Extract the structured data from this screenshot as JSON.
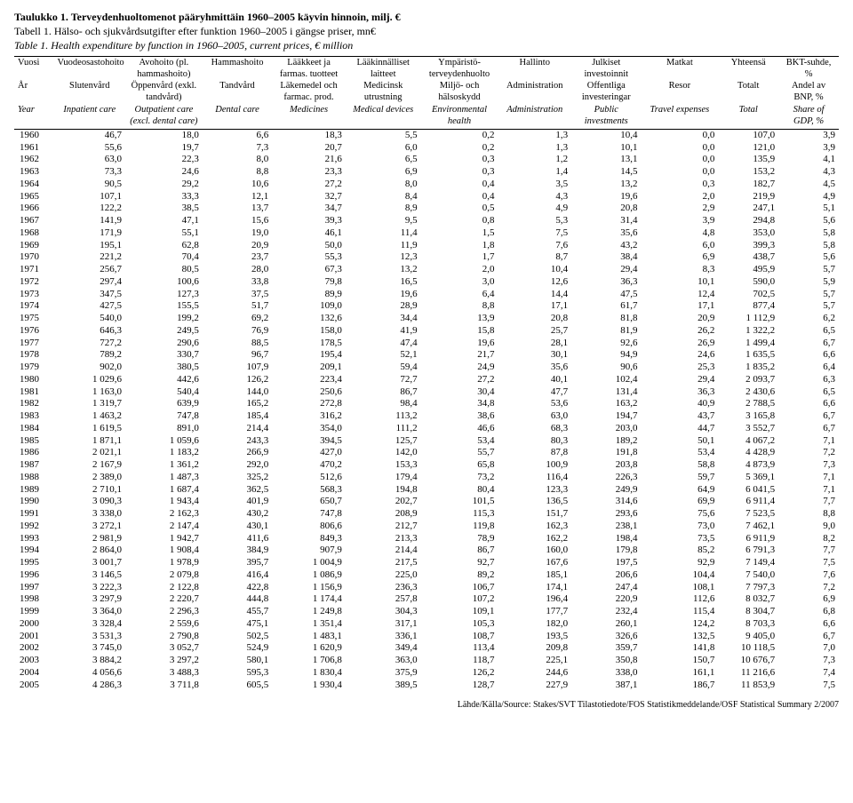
{
  "titles": {
    "fi": "Taulukko 1. Terveydenhuoltomenot pääryhmittäin 1960–2005 käyvin hinnoin, milj. €",
    "sv": "Tabell 1. Hälso- och sjukvårdsutgifter efter funktion 1960–2005 i gängse priser, mn€",
    "en": "Table 1. Health expenditure by function in 1960–2005, current prices, € million"
  },
  "headers": {
    "fi": [
      "Vuosi",
      "Vuodeosastohoito",
      "Avohoito (pl. hammashoito)",
      "Hammashoito",
      "Lääkkeet ja farmas. tuotteet",
      "Lääkinnälliset laitteet",
      "Ympäristö-terveydenhuolto",
      "Hallinto",
      "Julkiset investoinnit",
      "Matkat",
      "Yhteensä",
      "BKT-suhde, %"
    ],
    "sv": [
      "År",
      "Slutenvård",
      "Öppenvård (exkl. tandvård)",
      "Tandvård",
      "Läkemedel och farmac. prod.",
      "Medicinsk utrustning",
      "Miljö- och hälsoskydd",
      "Administration",
      "Offentliga investeringar",
      "Resor",
      "Totalt",
      "Andel av BNP, %"
    ],
    "en": [
      "Year",
      "Inpatient care",
      "Outpatient care (excl. dental care)",
      "Dental care",
      "Medicines",
      "Medical devices",
      "Environmental health",
      "Administration",
      "Public investments",
      "Travel expenses",
      "Total",
      "Share of GDP, %"
    ]
  },
  "rows": [
    [
      "1960",
      "46,7",
      "18,0",
      "6,6",
      "18,3",
      "5,5",
      "0,2",
      "1,3",
      "10,4",
      "0,0",
      "107,0",
      "3,9"
    ],
    [
      "1961",
      "55,6",
      "19,7",
      "7,3",
      "20,7",
      "6,0",
      "0,2",
      "1,3",
      "10,1",
      "0,0",
      "121,0",
      "3,9"
    ],
    [
      "1962",
      "63,0",
      "22,3",
      "8,0",
      "21,6",
      "6,5",
      "0,3",
      "1,2",
      "13,1",
      "0,0",
      "135,9",
      "4,1"
    ],
    [
      "1963",
      "73,3",
      "24,6",
      "8,8",
      "23,3",
      "6,9",
      "0,3",
      "1,4",
      "14,5",
      "0,0",
      "153,2",
      "4,3"
    ],
    [
      "1964",
      "90,5",
      "29,2",
      "10,6",
      "27,2",
      "8,0",
      "0,4",
      "3,5",
      "13,2",
      "0,3",
      "182,7",
      "4,5"
    ],
    [
      "1965",
      "107,1",
      "33,3",
      "12,1",
      "32,7",
      "8,4",
      "0,4",
      "4,3",
      "19,6",
      "2,0",
      "219,9",
      "4,9"
    ],
    [
      "1966",
      "122,2",
      "38,5",
      "13,7",
      "34,7",
      "8,9",
      "0,5",
      "4,9",
      "20,8",
      "2,9",
      "247,1",
      "5,1"
    ],
    [
      "1967",
      "141,9",
      "47,1",
      "15,6",
      "39,3",
      "9,5",
      "0,8",
      "5,3",
      "31,4",
      "3,9",
      "294,8",
      "5,6"
    ],
    [
      "1968",
      "171,9",
      "55,1",
      "19,0",
      "46,1",
      "11,4",
      "1,5",
      "7,5",
      "35,6",
      "4,8",
      "353,0",
      "5,8"
    ],
    [
      "1969",
      "195,1",
      "62,8",
      "20,9",
      "50,0",
      "11,9",
      "1,8",
      "7,6",
      "43,2",
      "6,0",
      "399,3",
      "5,8"
    ],
    [
      "1970",
      "221,2",
      "70,4",
      "23,7",
      "55,3",
      "12,3",
      "1,7",
      "8,7",
      "38,4",
      "6,9",
      "438,7",
      "5,6"
    ],
    [
      "1971",
      "256,7",
      "80,5",
      "28,0",
      "67,3",
      "13,2",
      "2,0",
      "10,4",
      "29,4",
      "8,3",
      "495,9",
      "5,7"
    ],
    [
      "1972",
      "297,4",
      "100,6",
      "33,8",
      "79,8",
      "16,5",
      "3,0",
      "12,6",
      "36,3",
      "10,1",
      "590,0",
      "5,9"
    ],
    [
      "1973",
      "347,5",
      "127,3",
      "37,5",
      "89,9",
      "19,6",
      "6,4",
      "14,4",
      "47,5",
      "12,4",
      "702,5",
      "5,7"
    ],
    [
      "1974",
      "427,5",
      "155,5",
      "51,7",
      "109,0",
      "28,9",
      "8,8",
      "17,1",
      "61,7",
      "17,1",
      "877,4",
      "5,7"
    ],
    [
      "1975",
      "540,0",
      "199,2",
      "69,2",
      "132,6",
      "34,4",
      "13,9",
      "20,8",
      "81,8",
      "20,9",
      "1 112,9",
      "6,2"
    ],
    [
      "1976",
      "646,3",
      "249,5",
      "76,9",
      "158,0",
      "41,9",
      "15,8",
      "25,7",
      "81,9",
      "26,2",
      "1 322,2",
      "6,5"
    ],
    [
      "1977",
      "727,2",
      "290,6",
      "88,5",
      "178,5",
      "47,4",
      "19,6",
      "28,1",
      "92,6",
      "26,9",
      "1 499,4",
      "6,7"
    ],
    [
      "1978",
      "789,2",
      "330,7",
      "96,7",
      "195,4",
      "52,1",
      "21,7",
      "30,1",
      "94,9",
      "24,6",
      "1 635,5",
      "6,6"
    ],
    [
      "1979",
      "902,0",
      "380,5",
      "107,9",
      "209,1",
      "59,4",
      "24,9",
      "35,6",
      "90,6",
      "25,3",
      "1 835,2",
      "6,4"
    ],
    [
      "1980",
      "1 029,6",
      "442,6",
      "126,2",
      "223,4",
      "72,7",
      "27,2",
      "40,1",
      "102,4",
      "29,4",
      "2 093,7",
      "6,3"
    ],
    [
      "1981",
      "1 163,0",
      "540,4",
      "144,0",
      "250,6",
      "86,7",
      "30,4",
      "47,7",
      "131,4",
      "36,3",
      "2 430,6",
      "6,5"
    ],
    [
      "1982",
      "1 319,7",
      "639,9",
      "165,2",
      "272,8",
      "98,4",
      "34,8",
      "53,6",
      "163,2",
      "40,9",
      "2 788,5",
      "6,6"
    ],
    [
      "1983",
      "1 463,2",
      "747,8",
      "185,4",
      "316,2",
      "113,2",
      "38,6",
      "63,0",
      "194,7",
      "43,7",
      "3 165,8",
      "6,7"
    ],
    [
      "1984",
      "1 619,5",
      "891,0",
      "214,4",
      "354,0",
      "111,2",
      "46,6",
      "68,3",
      "203,0",
      "44,7",
      "3 552,7",
      "6,7"
    ],
    [
      "1985",
      "1 871,1",
      "1 059,6",
      "243,3",
      "394,5",
      "125,7",
      "53,4",
      "80,3",
      "189,2",
      "50,1",
      "4 067,2",
      "7,1"
    ],
    [
      "1986",
      "2 021,1",
      "1 183,2",
      "266,9",
      "427,0",
      "142,0",
      "55,7",
      "87,8",
      "191,8",
      "53,4",
      "4 428,9",
      "7,2"
    ],
    [
      "1987",
      "2 167,9",
      "1 361,2",
      "292,0",
      "470,2",
      "153,3",
      "65,8",
      "100,9",
      "203,8",
      "58,8",
      "4 873,9",
      "7,3"
    ],
    [
      "1988",
      "2 389,0",
      "1 487,3",
      "325,2",
      "512,6",
      "179,4",
      "73,2",
      "116,4",
      "226,3",
      "59,7",
      "5 369,1",
      "7,1"
    ],
    [
      "1989",
      "2 710,1",
      "1 687,4",
      "362,5",
      "568,3",
      "194,8",
      "80,4",
      "123,3",
      "249,9",
      "64,9",
      "6 041,5",
      "7,1"
    ],
    [
      "1990",
      "3 090,3",
      "1 943,4",
      "401,9",
      "650,7",
      "202,7",
      "101,5",
      "136,5",
      "314,6",
      "69,9",
      "6 911,4",
      "7,7"
    ],
    [
      "1991",
      "3 338,0",
      "2 162,3",
      "430,2",
      "747,8",
      "208,9",
      "115,3",
      "151,7",
      "293,6",
      "75,6",
      "7 523,5",
      "8,8"
    ],
    [
      "1992",
      "3 272,1",
      "2 147,4",
      "430,1",
      "806,6",
      "212,7",
      "119,8",
      "162,3",
      "238,1",
      "73,0",
      "7 462,1",
      "9,0"
    ],
    [
      "1993",
      "2 981,9",
      "1 942,7",
      "411,6",
      "849,3",
      "213,3",
      "78,9",
      "162,2",
      "198,4",
      "73,5",
      "6 911,9",
      "8,2"
    ],
    [
      "1994",
      "2 864,0",
      "1 908,4",
      "384,9",
      "907,9",
      "214,4",
      "86,7",
      "160,0",
      "179,8",
      "85,2",
      "6 791,3",
      "7,7"
    ],
    [
      "1995",
      "3 001,7",
      "1 978,9",
      "395,7",
      "1 004,9",
      "217,5",
      "92,7",
      "167,6",
      "197,5",
      "92,9",
      "7 149,4",
      "7,5"
    ],
    [
      "1996",
      "3 146,5",
      "2 079,8",
      "416,4",
      "1 086,9",
      "225,0",
      "89,2",
      "185,1",
      "206,6",
      "104,4",
      "7 540,0",
      "7,6"
    ],
    [
      "1997",
      "3 222,3",
      "2 122,8",
      "422,8",
      "1 156,9",
      "236,3",
      "106,7",
      "174,1",
      "247,4",
      "108,1",
      "7 797,3",
      "7,2"
    ],
    [
      "1998",
      "3 297,9",
      "2 220,7",
      "444,8",
      "1 174,4",
      "257,8",
      "107,2",
      "196,4",
      "220,9",
      "112,6",
      "8 032,7",
      "6,9"
    ],
    [
      "1999",
      "3 364,0",
      "2 296,3",
      "455,7",
      "1 249,8",
      "304,3",
      "109,1",
      "177,7",
      "232,4",
      "115,4",
      "8 304,7",
      "6,8"
    ],
    [
      "2000",
      "3 328,4",
      "2 559,6",
      "475,1",
      "1 351,4",
      "317,1",
      "105,3",
      "182,0",
      "260,1",
      "124,2",
      "8 703,3",
      "6,6"
    ],
    [
      "2001",
      "3 531,3",
      "2 790,8",
      "502,5",
      "1 483,1",
      "336,1",
      "108,7",
      "193,5",
      "326,6",
      "132,5",
      "9 405,0",
      "6,7"
    ],
    [
      "2002",
      "3 745,0",
      "3 052,7",
      "524,9",
      "1 620,9",
      "349,4",
      "113,4",
      "209,8",
      "359,7",
      "141,8",
      "10 118,5",
      "7,0"
    ],
    [
      "2003",
      "3 884,2",
      "3 297,2",
      "580,1",
      "1 706,8",
      "363,0",
      "118,7",
      "225,1",
      "350,8",
      "150,7",
      "10 676,7",
      "7,3"
    ],
    [
      "2004",
      "4 056,6",
      "3 488,3",
      "595,3",
      "1 830,4",
      "375,9",
      "126,2",
      "244,6",
      "338,0",
      "161,1",
      "11 216,6",
      "7,4"
    ],
    [
      "2005",
      "4 286,3",
      "3 711,8",
      "605,5",
      "1 930,4",
      "389,5",
      "128,7",
      "227,9",
      "387,1",
      "186,7",
      "11 853,9",
      "7,5"
    ]
  ],
  "source": "Lähde/Källa/Source: Stakes/SVT Tilastotiedote/FOS Statistikmeddelande/OSF Statistical Summary 2/2007"
}
